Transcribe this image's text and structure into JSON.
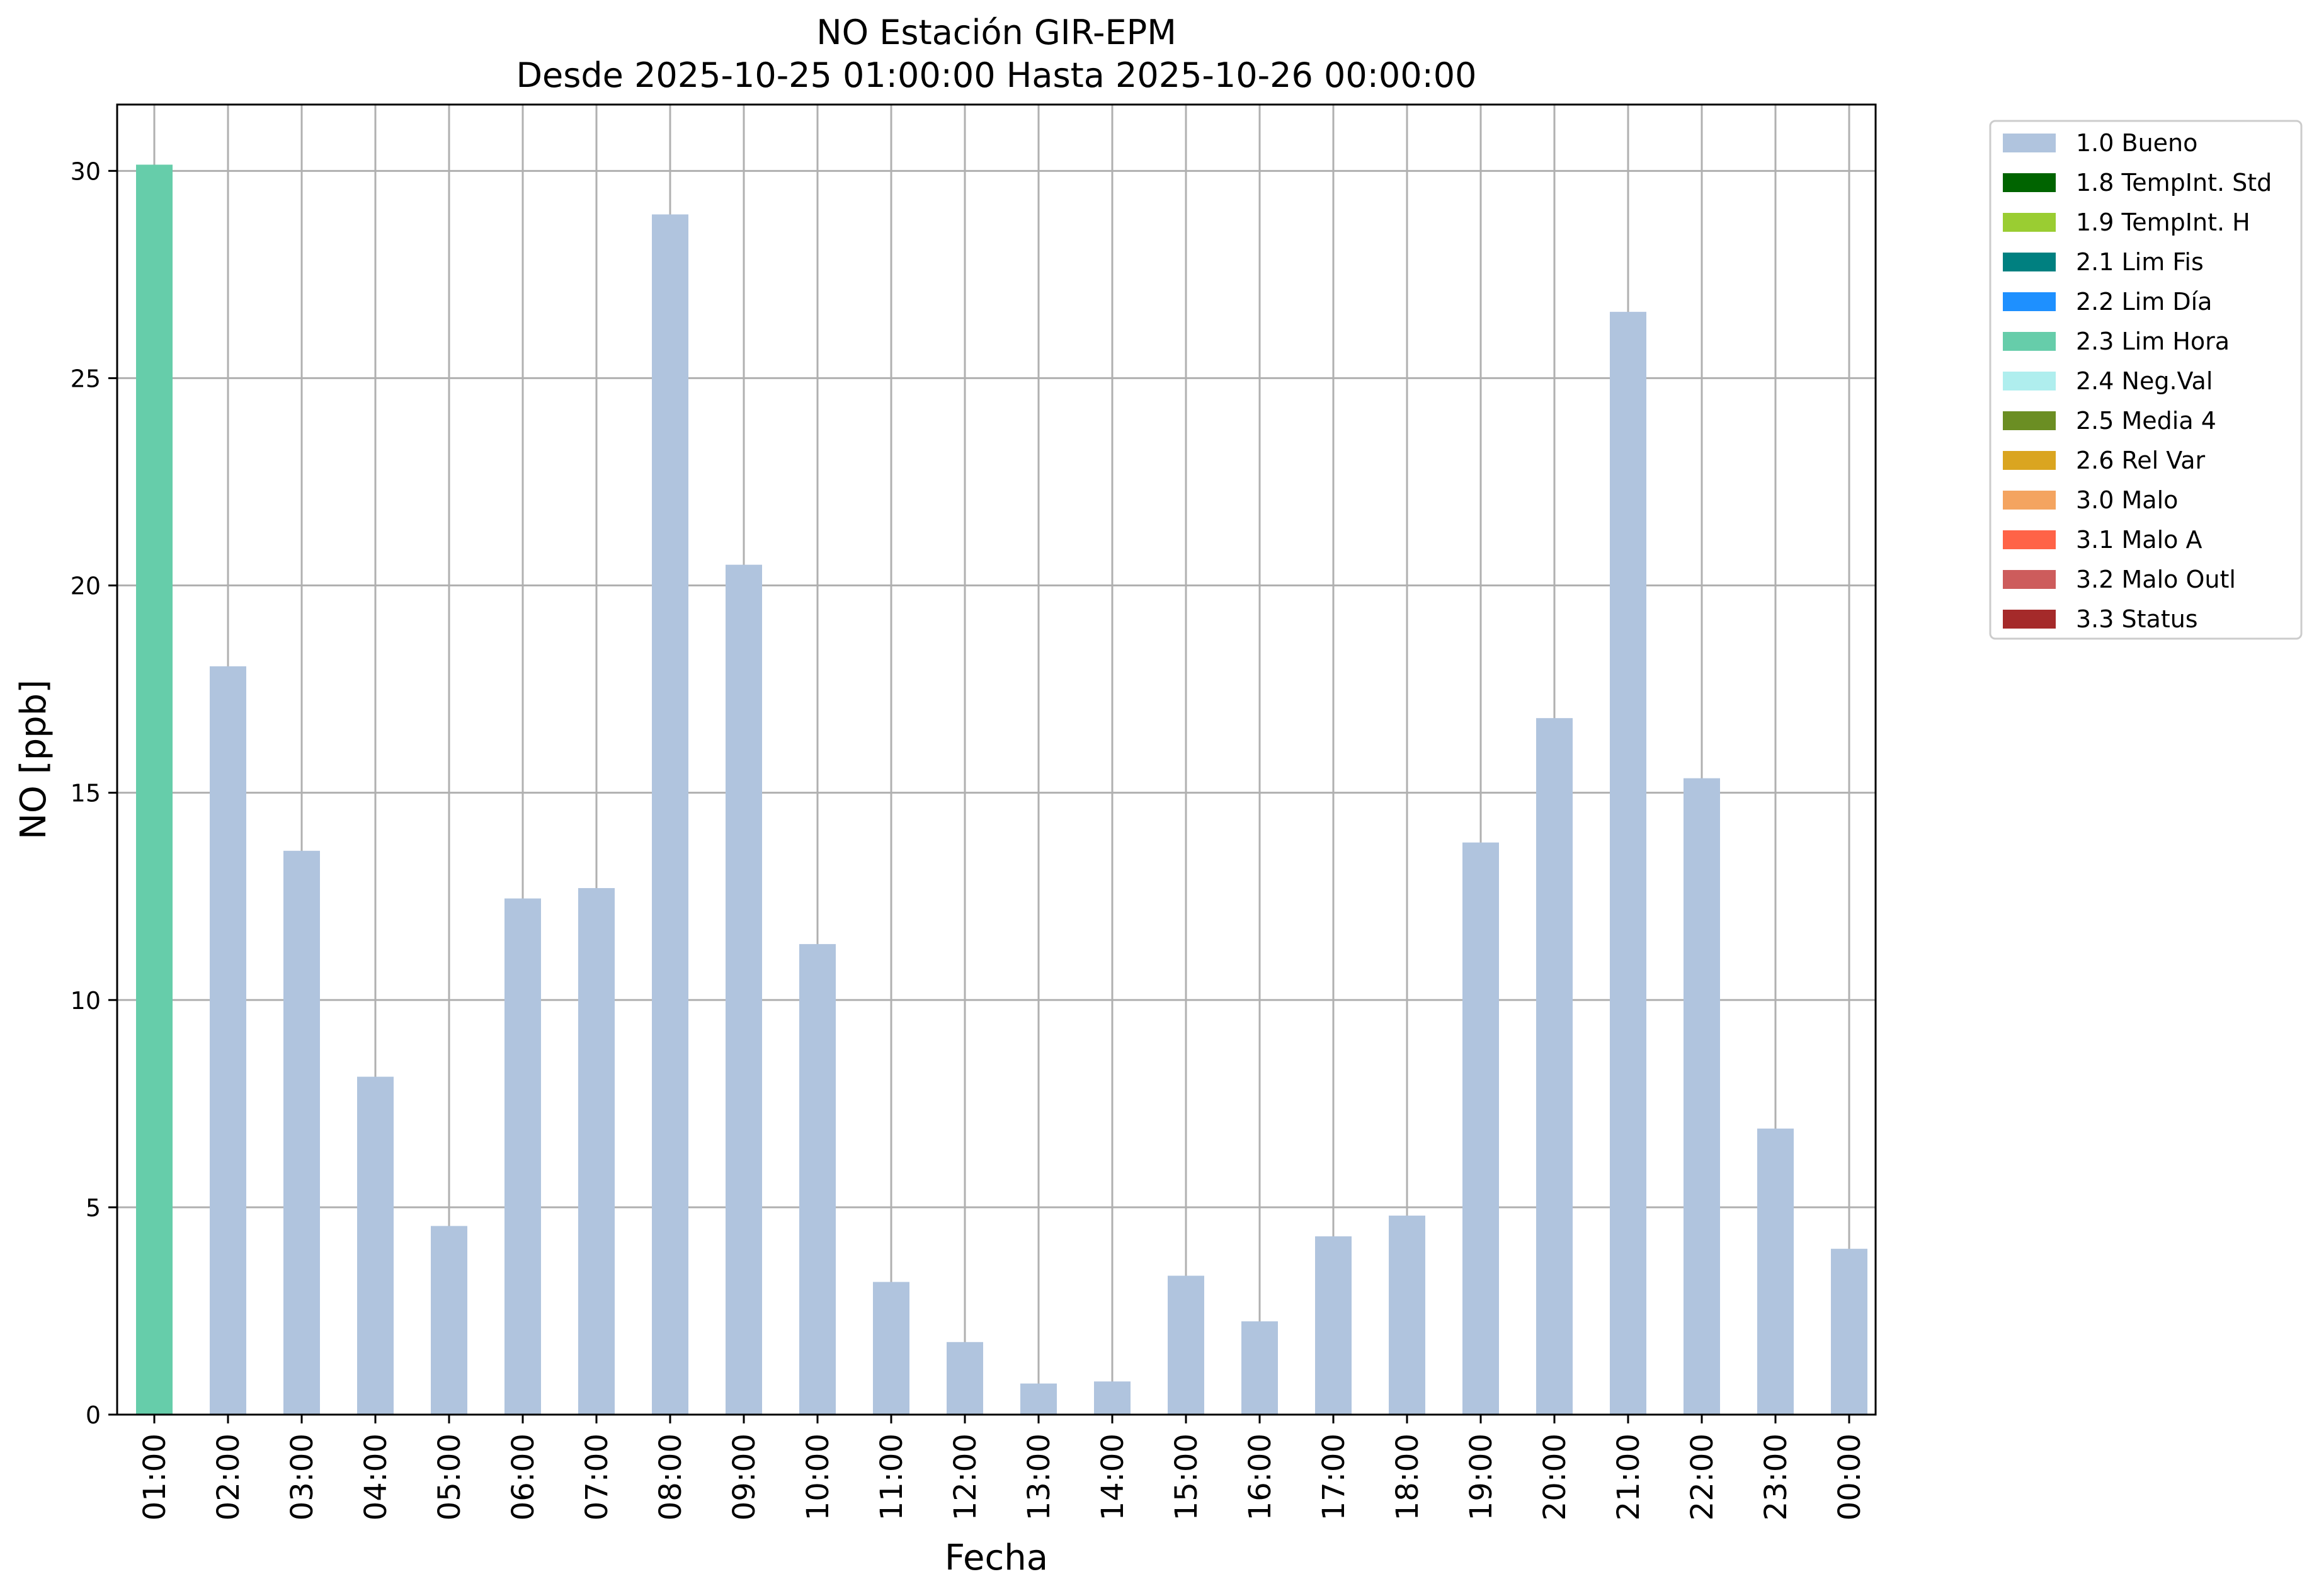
{
  "chart_data": {
    "type": "bar",
    "title": "NO Estación GIR-EPM",
    "subtitle": "Desde 2025-10-25 01:00:00 Hasta 2025-10-26 00:00:00",
    "xlabel": "Fecha",
    "ylabel": "NO [ppb]",
    "ylim": [
      0,
      31.6
    ],
    "yticks": [
      0,
      5,
      10,
      15,
      20,
      25,
      30
    ],
    "grid": true,
    "legend_position": "outside-top-right",
    "categories": [
      "01:00",
      "02:00",
      "03:00",
      "04:00",
      "05:00",
      "06:00",
      "07:00",
      "08:00",
      "09:00",
      "10:00",
      "11:00",
      "12:00",
      "13:00",
      "14:00",
      "15:00",
      "16:00",
      "17:00",
      "18:00",
      "19:00",
      "20:00",
      "21:00",
      "22:00",
      "23:00",
      "00:00"
    ],
    "values": [
      30.15,
      18.05,
      13.6,
      8.15,
      4.55,
      12.45,
      12.7,
      28.95,
      20.5,
      11.35,
      3.2,
      1.75,
      0.75,
      0.8,
      3.35,
      2.25,
      4.3,
      4.8,
      13.8,
      16.8,
      26.6,
      15.35,
      6.9,
      4.0
    ],
    "flags": [
      "2.3 Lim Hora",
      "1.0 Bueno",
      "1.0 Bueno",
      "1.0 Bueno",
      "1.0 Bueno",
      "1.0 Bueno",
      "1.0 Bueno",
      "1.0 Bueno",
      "1.0 Bueno",
      "1.0 Bueno",
      "1.0 Bueno",
      "1.0 Bueno",
      "1.0 Bueno",
      "1.0 Bueno",
      "1.0 Bueno",
      "1.0 Bueno",
      "1.0 Bueno",
      "1.0 Bueno",
      "1.0 Bueno",
      "1.0 Bueno",
      "1.0 Bueno",
      "1.0 Bueno",
      "1.0 Bueno",
      "1.0 Bueno"
    ],
    "legend": [
      {
        "label": "1.0 Bueno",
        "color": "#b0c4de"
      },
      {
        "label": "1.8 TempInt. Std",
        "color": "#006400"
      },
      {
        "label": "1.9 TempInt. H",
        "color": "#9acd32"
      },
      {
        "label": "2.1 Lim Fis",
        "color": "#008080"
      },
      {
        "label": "2.2 Lim Día",
        "color": "#1e90ff"
      },
      {
        "label": "2.3 Lim Hora",
        "color": "#66cdaa"
      },
      {
        "label": "2.4 Neg.Val",
        "color": "#afeeee"
      },
      {
        "label": "2.5 Media 4",
        "color": "#6b8e23"
      },
      {
        "label": "2.6 Rel Var",
        "color": "#daa520"
      },
      {
        "label": "3.0 Malo",
        "color": "#f4a460"
      },
      {
        "label": "3.1 Malo A",
        "color": "#ff6347"
      },
      {
        "label": "3.2 Malo Outl",
        "color": "#cd5c5c"
      },
      {
        "label": "3.3 Status",
        "color": "#a52a2a"
      }
    ]
  }
}
